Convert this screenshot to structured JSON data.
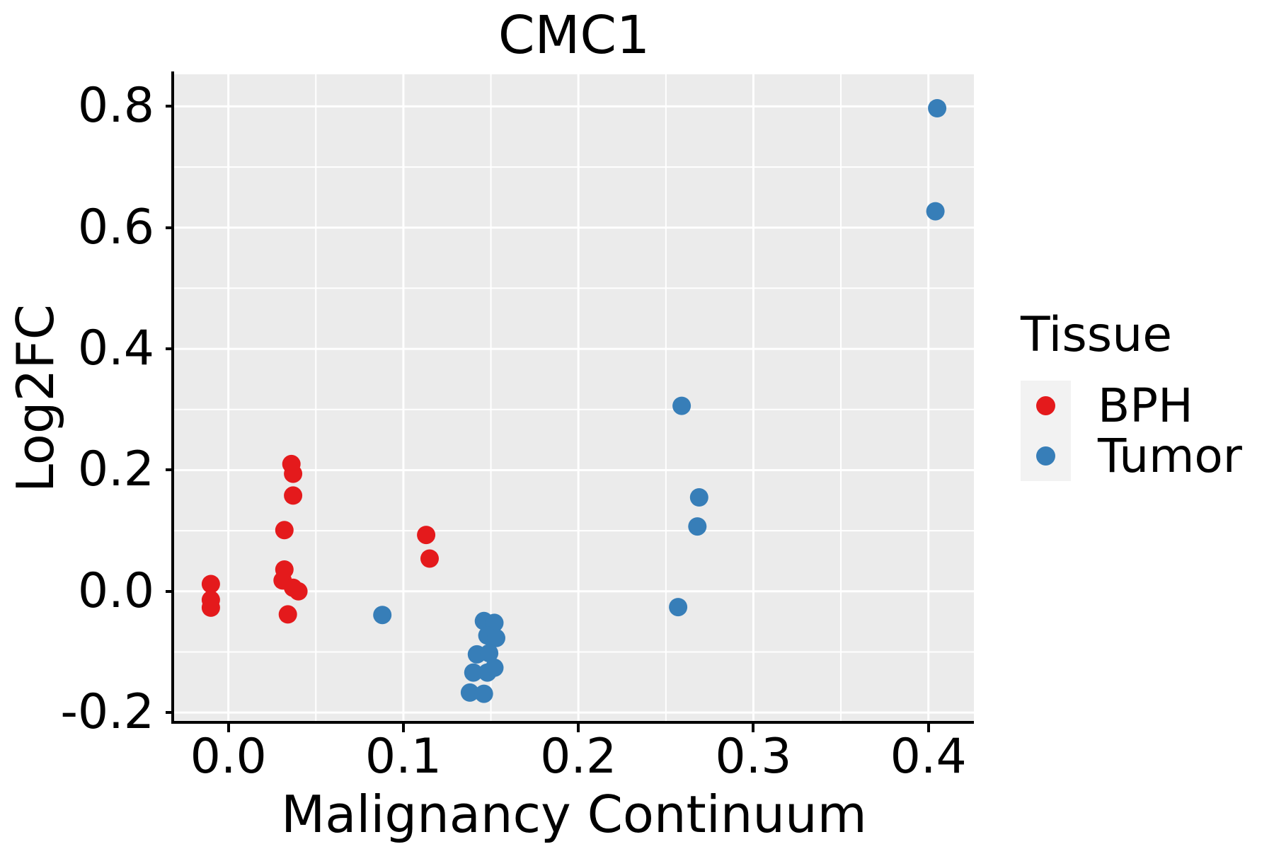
{
  "colors": {
    "panel_bg": "#EBEBEB",
    "grid": "#FFFFFF",
    "legend_key_bg": "#F2F2F2",
    "bph_red": "#E41A1C",
    "tumor_blue": "#377EB8",
    "text": "#000000"
  },
  "chart_data": {
    "type": "scatter",
    "title": "CMC1",
    "xlabel": "Malignancy Continuum",
    "ylabel": "Log2FC",
    "xlim": [
      -0.031,
      0.426
    ],
    "ylim": [
      -0.215,
      0.853
    ],
    "grid": true,
    "x_ticks": {
      "values": [
        0.0,
        0.1,
        0.2,
        0.3,
        0.4
      ],
      "labels": [
        "0.0",
        "0.1",
        "0.2",
        "0.3",
        "0.4"
      ]
    },
    "y_ticks": {
      "values": [
        0.8,
        0.6,
        0.4,
        0.2,
        0.0,
        -0.2
      ],
      "labels": [
        "0.8",
        "0.6",
        "0.4",
        "0.2",
        "0.0",
        "-0.2"
      ]
    },
    "x_minor_ticks": [
      0.05,
      0.15,
      0.25,
      0.35
    ],
    "y_minor_ticks": [
      0.7,
      0.5,
      0.3,
      0.1,
      -0.1
    ],
    "legend": {
      "title": "Tissue",
      "position": "right",
      "entries": [
        {
          "label": "BPH",
          "color": "#E41A1C"
        },
        {
          "label": "Tumor",
          "color": "#377EB8"
        }
      ]
    },
    "series": [
      {
        "name": "BPH",
        "color": "#E41A1C",
        "points": [
          [
            -0.01,
            0.012
          ],
          [
            -0.01,
            -0.014
          ],
          [
            -0.01,
            -0.027
          ],
          [
            0.036,
            0.21
          ],
          [
            0.037,
            0.194
          ],
          [
            0.037,
            0.158
          ],
          [
            0.032,
            0.101
          ],
          [
            0.032,
            0.036
          ],
          [
            0.031,
            0.018
          ],
          [
            0.037,
            0.006
          ],
          [
            0.04,
            0.0
          ],
          [
            0.034,
            -0.038
          ],
          [
            0.113,
            0.093
          ],
          [
            0.115,
            0.054
          ]
        ]
      },
      {
        "name": "Tumor",
        "color": "#377EB8",
        "points": [
          [
            0.088,
            -0.039
          ],
          [
            0.146,
            -0.049
          ],
          [
            0.152,
            -0.052
          ],
          [
            0.148,
            -0.073
          ],
          [
            0.153,
            -0.077
          ],
          [
            0.142,
            -0.104
          ],
          [
            0.149,
            -0.102
          ],
          [
            0.14,
            -0.134
          ],
          [
            0.148,
            -0.134
          ],
          [
            0.152,
            -0.126
          ],
          [
            0.138,
            -0.167
          ],
          [
            0.146,
            -0.169
          ],
          [
            0.259,
            0.306
          ],
          [
            0.269,
            0.155
          ],
          [
            0.268,
            0.107
          ],
          [
            0.257,
            -0.026
          ],
          [
            0.405,
            0.797
          ],
          [
            0.404,
            0.627
          ]
        ]
      }
    ]
  }
}
